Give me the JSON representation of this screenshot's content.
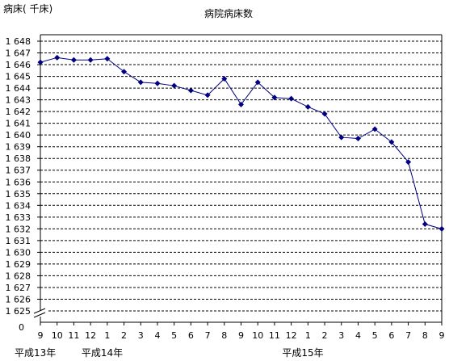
{
  "chart_data": {
    "type": "line",
    "title": "病院病床数",
    "ylabel": "病床( 千床)",
    "xlabel": "",
    "ylim": [
      1625,
      1648
    ],
    "y_ticks": [
      "1 648",
      "1 647",
      "1 646",
      "1 645",
      "1 644",
      "1 643",
      "1 642",
      "1 641",
      "1 640",
      "1 639",
      "1 638",
      "1 637",
      "1 636",
      "1 635",
      "1 634",
      "1 633",
      "1 632",
      "1 631",
      "1 630",
      "1 629",
      "1 628",
      "1 627",
      "1 626",
      "1 625"
    ],
    "y_zero_label": "0",
    "axis_break": true,
    "categories": [
      "9",
      "10",
      "11",
      "12",
      "1",
      "2",
      "3",
      "4",
      "5",
      "6",
      "7",
      "8",
      "9",
      "10",
      "11",
      "12",
      "1",
      "2",
      "3",
      "4",
      "5",
      "6",
      "7",
      "8",
      "9"
    ],
    "era_labels": [
      {
        "label": "平成13年",
        "at_index": 0
      },
      {
        "label": "平成14年",
        "at_index": 4
      },
      {
        "label": "平成15年",
        "at_index": 16
      }
    ],
    "series": [
      {
        "values": [
          1646.2,
          1646.6,
          1646.4,
          1646.4,
          1646.5,
          1645.4,
          1644.5,
          1644.4,
          1644.2,
          1643.8,
          1643.4,
          1644.8,
          1642.6,
          1644.5,
          1643.2,
          1643.1,
          1642.4,
          1641.8,
          1639.8,
          1639.7,
          1640.5,
          1639.4,
          1637.7,
          1632.4,
          1632.0
        ]
      }
    ],
    "grid": true,
    "legend": "none",
    "colors": {
      "line": "#000080",
      "marker": "#000080",
      "grid": "#000000",
      "axis": "#000000"
    }
  }
}
